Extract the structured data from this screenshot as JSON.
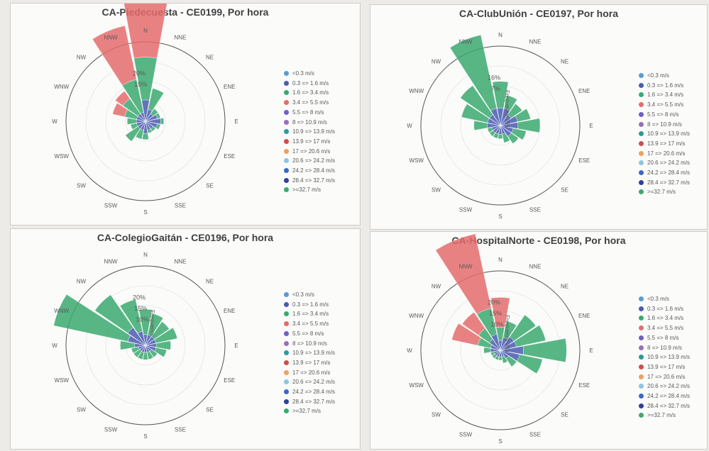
{
  "legend": {
    "bins": [
      {
        "label": "<0.3 m/s",
        "color": "#5b9bd5"
      },
      {
        "label": "0.3 => 1.6 m/s",
        "color": "#4a5bb0"
      },
      {
        "label": "1.6 => 3.4 m/s",
        "color": "#3aa96e"
      },
      {
        "label": "3.4 => 5.5 m/s",
        "color": "#e46c6c"
      },
      {
        "label": "5.5 => 8 m/s",
        "color": "#6e5fc4"
      },
      {
        "label": "8 => 10.9 m/s",
        "color": "#9a6fb5"
      },
      {
        "label": "10.9 => 13.9 m/s",
        "color": "#2d9a9c"
      },
      {
        "label": "13.9 => 17 m/s",
        "color": "#d24c4c"
      },
      {
        "label": "17 => 20.6 m/s",
        "color": "#f0a060"
      },
      {
        "label": "20.6 => 24.2 m/s",
        "color": "#8ec5e0"
      },
      {
        "label": "24.2 => 28.4 m/s",
        "color": "#3a67c8"
      },
      {
        "label": "28.4 => 32.7 m/s",
        "color": "#2e3f9c"
      },
      {
        "label": ">=32.7 m/s",
        "color": "#3aa96e"
      }
    ]
  },
  "colors": {
    "blue": "#4a5bb0",
    "green": "#3aa96e",
    "red": "#e46c6c"
  },
  "chart_data": [
    {
      "type": "radar",
      "title": "CA-Piedecuesta - CE0199, Por hora",
      "directions": [
        "N",
        "NNE",
        "NE",
        "ENE",
        "E",
        "ESE",
        "SE",
        "SSE",
        "S",
        "SSW",
        "SW",
        "WSW",
        "W",
        "WNW",
        "NW",
        "NNW"
      ],
      "radial_max": 26,
      "ring_labels": [
        "20%",
        "15%"
      ],
      "radial_axis_label": "",
      "series": [
        {
          "name": "0.3 => 1.6 m/s",
          "values": [
            7,
            4,
            3,
            4,
            5,
            4,
            3,
            3,
            4,
            3,
            3,
            3,
            3,
            3,
            3,
            3
          ]
        },
        {
          "name": "1.6 => 3.4 m/s",
          "values": [
            14,
            7,
            2,
            1,
            1,
            1,
            1,
            1,
            2,
            3,
            5,
            2,
            3,
            4,
            6,
            11
          ]
        },
        {
          "name": "3.4 => 5.5 m/s",
          "values": [
            24,
            0,
            0,
            0,
            0,
            0,
            0,
            0,
            0,
            0,
            0,
            0,
            0,
            4,
            3,
            18
          ]
        }
      ]
    },
    {
      "type": "radar",
      "title": "CA-ClubUnión - CE0197, Por hora",
      "directions": [
        "N",
        "NNE",
        "NE",
        "ENE",
        "E",
        "ESE",
        "SE",
        "SSE",
        "S",
        "SSW",
        "SW",
        "WSW",
        "W",
        "WNW",
        "NW",
        "NNW"
      ],
      "radial_max": 18,
      "ring_labels": [
        "16%",
        "7%"
      ],
      "radial_axis_label": "Frequency (%)",
      "series": [
        {
          "name": "0.3 => 1.6 m/s",
          "values": [
            4,
            4,
            3,
            4,
            4,
            3,
            3,
            2,
            2,
            2,
            2,
            2,
            3,
            3,
            3,
            4
          ]
        },
        {
          "name": "1.6 => 3.4 m/s",
          "values": [
            6,
            3,
            3,
            3,
            5,
            3,
            2,
            2,
            1,
            1,
            1,
            1,
            3,
            6,
            8,
            17
          ]
        },
        {
          "name": "3.4 => 5.5 m/s",
          "values": [
            0,
            0,
            0,
            0,
            0,
            0,
            0,
            0,
            0,
            0,
            0,
            0,
            0,
            0,
            0,
            0
          ]
        }
      ]
    },
    {
      "type": "radar",
      "title": "CA-ColegioGaitán - CE0196, Por hora",
      "directions": [
        "N",
        "NNE",
        "NE",
        "ENE",
        "E",
        "ESE",
        "SE",
        "SSE",
        "S",
        "SSW",
        "SW",
        "WSW",
        "W",
        "WNW",
        "NW",
        "NNW"
      ],
      "radial_max": 22,
      "ring_labels": [
        "20%",
        "15%",
        "10%"
      ],
      "radial_axis_label": "Frequency",
      "series": [
        {
          "name": "0.3 => 1.6 m/s",
          "values": [
            3,
            3,
            3,
            3,
            3,
            3,
            2,
            2,
            2,
            2,
            2,
            2,
            3,
            5,
            6,
            4
          ]
        },
        {
          "name": "1.6 => 3.4 m/s",
          "values": [
            7,
            6,
            5,
            6,
            4,
            3,
            2,
            2,
            2,
            2,
            2,
            2,
            4,
            21,
            11,
            9
          ]
        },
        {
          "name": "3.4 => 5.5 m/s",
          "values": [
            0,
            0,
            0,
            0,
            0,
            0,
            0,
            0,
            0,
            0,
            0,
            0,
            0,
            0,
            0,
            0
          ]
        }
      ]
    },
    {
      "type": "radar",
      "title": "CA-HospitalNorte - CE0198, Por hora",
      "directions": [
        "N",
        "NNE",
        "NE",
        "ENE",
        "E",
        "ESE",
        "SE",
        "SSE",
        "S",
        "SSW",
        "SW",
        "WSW",
        "W",
        "WNW",
        "NW",
        "NNW"
      ],
      "radial_max": 24,
      "ring_labels": [
        "20%",
        "15%",
        "10%"
      ],
      "radial_axis_label": "Frequency (%)",
      "series": [
        {
          "name": "0.3 => 1.6 m/s",
          "values": [
            3,
            4,
            5,
            5,
            7,
            6,
            3,
            2,
            2,
            2,
            2,
            2,
            3,
            3,
            4,
            5
          ]
        },
        {
          "name": "1.6 => 3.4 m/s",
          "values": [
            4,
            5,
            8,
            9,
            13,
            7,
            3,
            2,
            1,
            1,
            1,
            1,
            2,
            4,
            4,
            8
          ]
        },
        {
          "name": "3.4 => 5.5 m/s",
          "values": [
            9,
            0,
            0,
            0,
            0,
            0,
            0,
            0,
            0,
            0,
            0,
            0,
            0,
            8,
            6,
            23
          ]
        }
      ]
    }
  ]
}
